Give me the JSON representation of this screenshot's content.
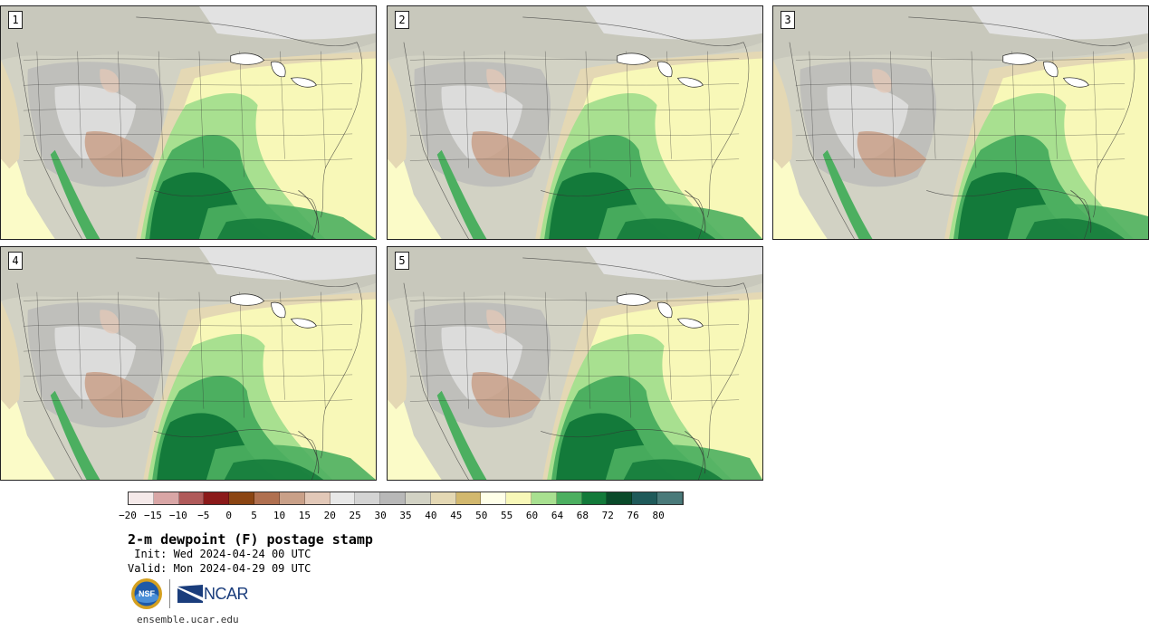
{
  "panels": [
    {
      "label": "1"
    },
    {
      "label": "2"
    },
    {
      "label": "3"
    },
    {
      "label": "4"
    },
    {
      "label": "5"
    }
  ],
  "colorbar": {
    "colors": [
      "#f5e9e9",
      "#d9a6a6",
      "#b05a5a",
      "#8b1a1a",
      "#8b4513",
      "#b07050",
      "#c9a088",
      "#e2c8b8",
      "#e8e8e8",
      "#d4d4d4",
      "#b8b8b8",
      "#d2d2c4",
      "#e4d8b4",
      "#d2b86e",
      "#ffffe8",
      "#f8f8b8",
      "#a8e090",
      "#4caf60",
      "#137a3a",
      "#0a4a2a",
      "#1f5a5a",
      "#4a7a7a"
    ],
    "tick_labels": [
      "−20",
      "−15",
      "−10",
      "−5",
      "0",
      "5",
      "10",
      "15",
      "20",
      "25",
      "30",
      "35",
      "40",
      "45",
      "50",
      "55",
      "60",
      "64",
      "68",
      "72",
      "76",
      "80"
    ]
  },
  "title": "2-m dewpoint (F) postage stamp",
  "init_line": " Init: Wed 2024-04-24 00 UTC",
  "valid_line": "Valid: Mon 2024-04-29 09 UTC",
  "logos": {
    "nsf": "NSF",
    "ncar": "NCAR"
  },
  "url": "ensemble.ucar.edu"
}
